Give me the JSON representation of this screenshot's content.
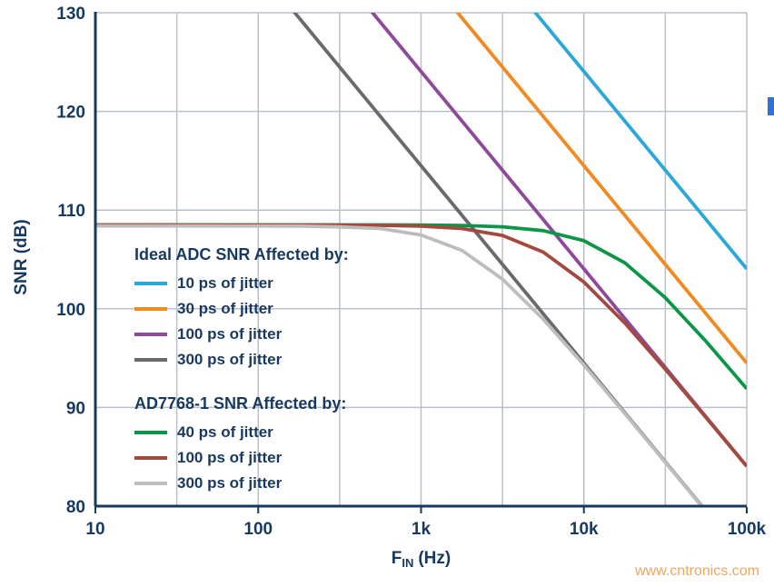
{
  "colors": {
    "text_navy": "#17395f",
    "grid": "#b9c0c9",
    "edge_marker": "#2f73d8",
    "watermark": "#f0a55f"
  },
  "legend": {
    "groups": [
      {
        "title": "Ideal ADC SNR Affected by:",
        "items": [
          {
            "label": "10 ps of jitter",
            "series": "ideal_10ps"
          },
          {
            "label": "30 ps of jitter",
            "series": "ideal_30ps"
          },
          {
            "label": "100 ps of jitter",
            "series": "ideal_100ps"
          },
          {
            "label": "300 ps of jitter",
            "series": "ideal_300ps"
          }
        ]
      },
      {
        "title": "AD7768-1 SNR Affected by:",
        "items": [
          {
            "label": "40 ps of jitter",
            "series": "ad_40ps"
          },
          {
            "label": "100 ps of jitter",
            "series": "ad_100ps"
          },
          {
            "label": "300 ps of jitter",
            "series": "ad_300ps"
          }
        ]
      }
    ]
  },
  "watermark": {
    "text": "www.cntronics.com",
    "color": "#f0a55f"
  },
  "chart_data": {
    "type": "line",
    "x_scale": "log",
    "xlim": [
      10,
      100000
    ],
    "ylim": [
      80,
      130
    ],
    "ylabel": "SNR (dB)",
    "xlabel_f": "F",
    "xlabel_sub": "IN",
    "xlabel_unit": "(Hz)",
    "grid": {
      "x_lines": "every half decade",
      "y_lines": "every 10 dB",
      "color": "#b9c0c9"
    },
    "legend_position": "inside middle-left",
    "x_ticks": [
      {
        "f": 10,
        "label": "10"
      },
      {
        "f": 100,
        "label": "100"
      },
      {
        "f": 1000,
        "label": "1k"
      },
      {
        "f": 10000,
        "label": "10k"
      },
      {
        "f": 100000,
        "label": "100k"
      }
    ],
    "y_ticks": [
      {
        "v": 80,
        "label": "80"
      },
      {
        "v": 90,
        "label": "90"
      },
      {
        "v": 100,
        "label": "100"
      },
      {
        "v": 110,
        "label": "110"
      },
      {
        "v": 120,
        "label": "120"
      },
      {
        "v": 130,
        "label": "130"
      }
    ],
    "series": [
      {
        "key": "ideal_10ps",
        "name": "Ideal ADC, 10 ps of jitter",
        "color": "#2ba8da",
        "points": [
          [
            100,
            164.04
          ],
          [
            100000,
            104.04
          ]
        ]
      },
      {
        "key": "ideal_30ps",
        "name": "Ideal ADC, 30 ps of jitter",
        "color": "#f18a21",
        "points": [
          [
            100,
            154.49
          ],
          [
            100000,
            94.49
          ]
        ]
      },
      {
        "key": "ideal_100ps",
        "name": "Ideal ADC, 100 ps of jitter",
        "color": "#8d4a9b",
        "points": [
          [
            10,
            164.04
          ],
          [
            100000,
            84.04
          ]
        ]
      },
      {
        "key": "ideal_300ps",
        "name": "Ideal ADC, 300 ps of jitter",
        "color": "#6a6a6d",
        "points": [
          [
            10,
            154.49
          ],
          [
            100000,
            74.49
          ]
        ]
      },
      {
        "key": "ad_40ps",
        "name": "AD7768-1, 40 ps of jitter",
        "color": "#0d9648",
        "points": [
          [
            10,
            108.5
          ],
          [
            560,
            108.5
          ],
          [
            1000,
            108.48
          ],
          [
            1780,
            108.44
          ],
          [
            3160,
            108.31
          ],
          [
            5620,
            107.92
          ],
          [
            10000,
            106.9
          ],
          [
            17800,
            104.67
          ],
          [
            31600,
            101.12
          ],
          [
            56200,
            96.7
          ],
          [
            100000,
            91.9
          ]
        ]
      },
      {
        "key": "ad_100ps",
        "name": "AD7768-1, 100 ps of jitter",
        "color": "#a34a3f",
        "points": [
          [
            10,
            108.5
          ],
          [
            316,
            108.48
          ],
          [
            562,
            108.45
          ],
          [
            1000,
            108.38
          ],
          [
            1780,
            108.13
          ],
          [
            3160,
            107.43
          ],
          [
            5620,
            105.75
          ],
          [
            10000,
            102.71
          ],
          [
            17800,
            98.57
          ],
          [
            31600,
            93.89
          ],
          [
            56200,
            88.99
          ],
          [
            100000,
            84.03
          ]
        ]
      },
      {
        "key": "ad_300ps",
        "name": "AD7768-1, 300 ps of jitter",
        "color": "#bdbdbd",
        "points": [
          [
            10,
            108.4
          ],
          [
            178,
            108.38
          ],
          [
            316,
            108.3
          ],
          [
            562,
            108.13
          ],
          [
            1000,
            107.48
          ],
          [
            1780,
            105.92
          ],
          [
            3160,
            103.0
          ],
          [
            5620,
            98.95
          ],
          [
            10000,
            94.3
          ],
          [
            17800,
            89.4
          ],
          [
            31600,
            84.45
          ],
          [
            56200,
            79.45
          ],
          [
            100000,
            74.45
          ]
        ]
      }
    ]
  }
}
